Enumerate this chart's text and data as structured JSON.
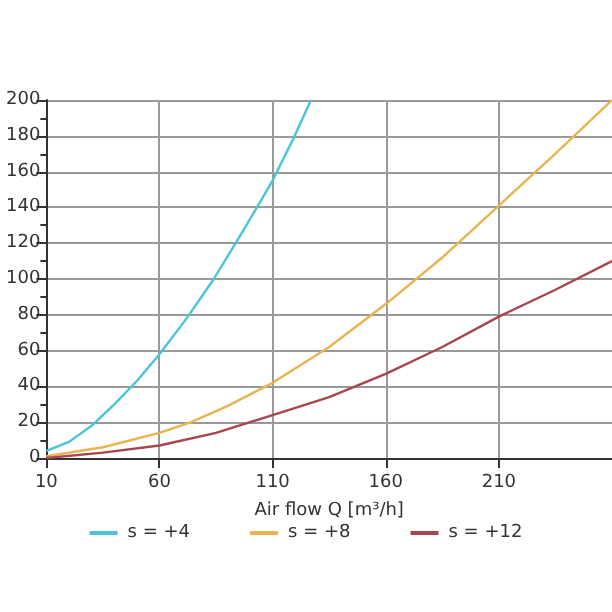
{
  "chart_data": {
    "type": "line",
    "xlabel": "Air flow Q [m³/h]",
    "xlim": [
      10,
      260
    ],
    "xticks": [
      10,
      60,
      110,
      160,
      210
    ],
    "ylim": [
      0,
      200
    ],
    "yticks": [
      0,
      20,
      40,
      60,
      80,
      100,
      120,
      140,
      160,
      180,
      200
    ],
    "grid": true,
    "legend": "bottom",
    "marker": "none",
    "series": [
      {
        "name": "s = +4",
        "color": "#4cc3d9",
        "x": [
          10,
          20,
          30,
          40,
          50,
          60,
          72,
          84,
          97,
          110,
          119,
          127
        ],
        "values": [
          4,
          9,
          18,
          30,
          43,
          58,
          78,
          100,
          127,
          155,
          178,
          200
        ]
      },
      {
        "name": "s = +8",
        "color": "#e8b450",
        "x": [
          10,
          35,
          60,
          74,
          90,
          110,
          135,
          160,
          185,
          210,
          235,
          260
        ],
        "values": [
          1,
          6,
          14,
          20,
          29,
          42,
          62,
          86,
          112,
          141,
          170,
          200
        ]
      },
      {
        "name": "s = +12",
        "color": "#a8464f",
        "x": [
          10,
          35,
          60,
          85,
          110,
          135,
          160,
          185,
          210,
          235,
          260
        ],
        "values": [
          0,
          3,
          7,
          14,
          24,
          34,
          47,
          62,
          79,
          94,
          110
        ]
      }
    ]
  }
}
